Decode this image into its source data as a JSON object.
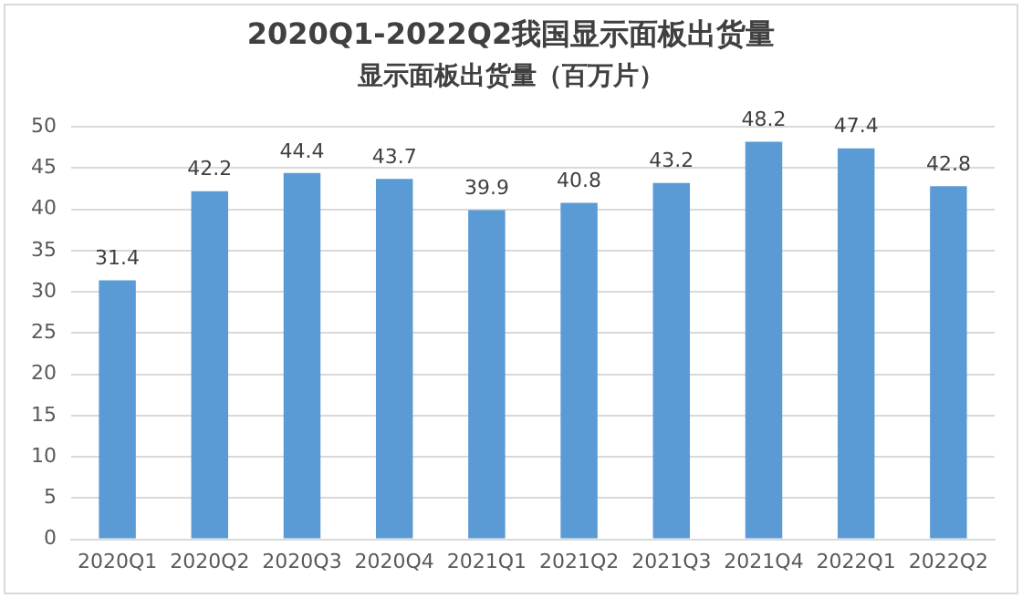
{
  "chart_data": {
    "type": "bar",
    "title": "2020Q1-2022Q2我国显示面板出货量",
    "subtitle": "显示面板出货量（百万片）",
    "categories": [
      "2020Q1",
      "2020Q2",
      "2020Q3",
      "2020Q4",
      "2021Q1",
      "2021Q2",
      "2021Q3",
      "2021Q4",
      "2022Q1",
      "2022Q2"
    ],
    "values": [
      31.4,
      42.2,
      44.4,
      43.7,
      39.9,
      40.8,
      43.2,
      48.2,
      47.4,
      42.8
    ],
    "color": "#5b9bd5",
    "ylim": [
      0,
      50
    ],
    "yticks": [
      0,
      5,
      10,
      15,
      20,
      25,
      30,
      35,
      40,
      45,
      50
    ],
    "grid": "y",
    "data_labels": true
  }
}
